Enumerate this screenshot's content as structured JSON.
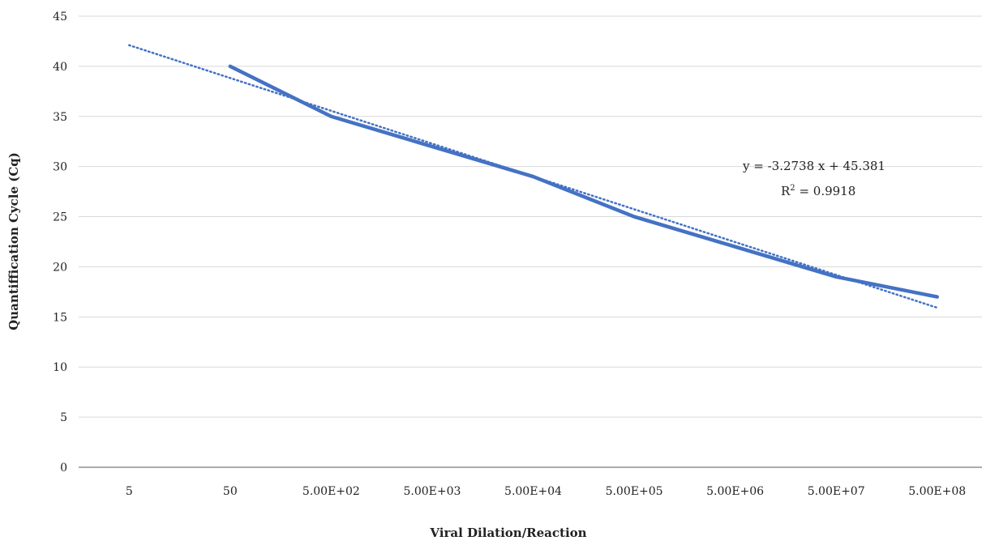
{
  "chart_data": {
    "type": "line",
    "title": "",
    "xlabel": "Viral Dilation/Reaction",
    "ylabel": "Quantiffication Cycle (Cq)",
    "categories": [
      "5",
      "50",
      "5.00E+02",
      "5.00E+03",
      "5.00E+04",
      "5.00E+05",
      "5.00E+06",
      "5.00E+07",
      "5.00E+08"
    ],
    "series": [
      {
        "values": [
          null,
          40,
          35,
          32,
          29,
          25,
          22,
          19,
          17
        ]
      }
    ],
    "trendline": {
      "type": "linear",
      "style": "dotted",
      "x_start": 1,
      "x_end": 9,
      "slope": -3.2738,
      "intercept": 45.381
    },
    "equation": {
      "line1": "y =  -3.2738   x +  45.381",
      "r2_prefix": "R",
      "r2_sup": "2",
      "r2_suffix": " = 0.9918"
    },
    "ylim": [
      0,
      45
    ],
    "yticks": [
      "0",
      "5",
      "10",
      "15",
      "20",
      "25",
      "30",
      "35",
      "40",
      "45"
    ],
    "grid": true,
    "legend": "none",
    "colors": {
      "series": "#4472c4",
      "grid": "#d9d9d9",
      "axis": "#595959"
    }
  }
}
